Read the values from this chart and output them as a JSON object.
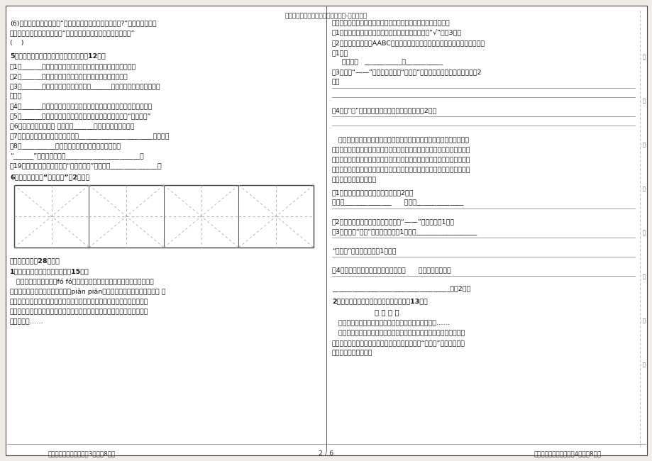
{
  "title": "六年级下学期期中质量检测语文试卷-六年级试卷",
  "bg": "#f0ede8",
  "page_bg": "#ffffff",
  "footer_left": "小学六年级语文试题一第3页（共8页）",
  "footer_center": "2 / 6",
  "footer_right": "小学六年级语文试题一第4页（共8页）",
  "figsize": [
    9.2,
    6.5
  ],
  "dpi": 100
}
